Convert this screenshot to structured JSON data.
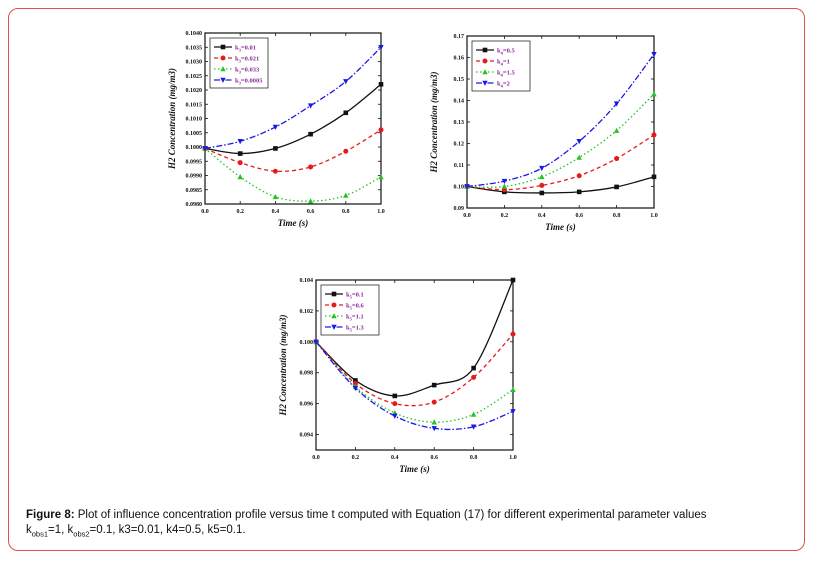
{
  "caption": {
    "label": "Figure 8:",
    "line1": " Plot of influence concentration profile versus time t computed with Equation (17) for different experimental parameter values",
    "line2_parts": [
      {
        "t": "k"
      },
      {
        "sub": "obs1"
      },
      {
        "t": "=1, k"
      },
      {
        "sub": "obs2"
      },
      {
        "t": "=0.1, k3=0.01, k4=0.5, k5=0.1."
      }
    ]
  },
  "chart_data": [
    {
      "type": "line",
      "ylabel": "H2 Concentration (mg/m3)",
      "xlabel": "Time (s)",
      "xlim": [
        0,
        1
      ],
      "ylim": [
        0.098,
        0.104
      ],
      "xticks": [
        "0.0",
        "0.2",
        "0.4",
        "0.6",
        "0.8",
        "1.0"
      ],
      "yticks": [
        "0.0980",
        "0.0985",
        "0.0990",
        "0.0995",
        "0.1000",
        "0.1005",
        "0.1010",
        "0.1015",
        "0.1020",
        "0.1025",
        "0.1030",
        "0.1035",
        "0.1040"
      ],
      "ytick_values": [
        0.098,
        0.0985,
        0.099,
        0.0995,
        0.1,
        0.1005,
        0.101,
        0.1015,
        0.102,
        0.1025,
        0.103,
        0.1035,
        0.104
      ],
      "legend_position": "top-left",
      "series": [
        {
          "name": "k3=0.01",
          "sym": "3",
          "val": "=0.01",
          "color": "#111111",
          "dash": "",
          "marker": "square",
          "x": [
            0,
            0.2,
            0.4,
            0.6,
            0.8,
            1.0
          ],
          "y": [
            0.09995,
            0.09977,
            0.09995,
            0.10045,
            0.1012,
            0.1022
          ]
        },
        {
          "name": "k3=0.021",
          "sym": "3",
          "val": "=0.021",
          "color": "#e8191c",
          "dash": "4,3",
          "marker": "circle",
          "x": [
            0,
            0.2,
            0.4,
            0.6,
            0.8,
            1.0
          ],
          "y": [
            0.09995,
            0.09945,
            0.09915,
            0.0993,
            0.09985,
            0.1006
          ]
        },
        {
          "name": "k3=0.033",
          "sym": "3",
          "val": "=0.033",
          "color": "#22c322",
          "dash": "1.5,2.5",
          "marker": "triangle-up",
          "x": [
            0,
            0.2,
            0.4,
            0.6,
            0.8,
            1.0
          ],
          "y": [
            0.09995,
            0.09895,
            0.09825,
            0.0981,
            0.0983,
            0.09895
          ]
        },
        {
          "name": "k3=0.0005",
          "sym": "3",
          "val": "=0.0005",
          "color": "#1a1ae6",
          "dash": "6,2,1.5,2",
          "marker": "triangle-down",
          "x": [
            0,
            0.2,
            0.4,
            0.6,
            0.8,
            1.0
          ],
          "y": [
            0.09995,
            0.1002,
            0.1007,
            0.10145,
            0.1023,
            0.1035
          ]
        }
      ]
    },
    {
      "type": "line",
      "ylabel": "H2 Concentration (mg/m3)",
      "xlabel": "Time (s)",
      "xlim": [
        0,
        1
      ],
      "ylim": [
        0.09,
        0.17
      ],
      "xticks": [
        "0.0",
        "0.2",
        "0.4",
        "0.6",
        "0.8",
        "1.0"
      ],
      "yticks": [
        "0.09",
        "0.10",
        "0.11",
        "0.12",
        "0.13",
        "0.14",
        "0.15",
        "0.16",
        "0.17"
      ],
      "ytick_values": [
        0.09,
        0.1,
        0.11,
        0.12,
        0.13,
        0.14,
        0.15,
        0.16,
        0.17
      ],
      "legend_position": "top-left",
      "series": [
        {
          "name": "k4=0.5",
          "sym": "4",
          "val": "=0.5",
          "color": "#111111",
          "dash": "",
          "marker": "square",
          "x": [
            0,
            0.2,
            0.4,
            0.6,
            0.8,
            1.0
          ],
          "y": [
            0.1,
            0.0975,
            0.097,
            0.0975,
            0.0998,
            0.1045
          ]
        },
        {
          "name": "k4=1",
          "sym": "4",
          "val": "=1",
          "color": "#e8191c",
          "dash": "4,3",
          "marker": "circle",
          "x": [
            0,
            0.2,
            0.4,
            0.6,
            0.8,
            1.0
          ],
          "y": [
            0.1,
            0.0985,
            0.1005,
            0.105,
            0.113,
            0.124
          ]
        },
        {
          "name": "k4=1.5",
          "sym": "4",
          "val": "=1.5",
          "color": "#22c322",
          "dash": "1.5,2.5",
          "marker": "triangle-up",
          "x": [
            0,
            0.2,
            0.4,
            0.6,
            0.8,
            1.0
          ],
          "y": [
            0.1,
            0.1,
            0.1045,
            0.1135,
            0.126,
            0.143
          ]
        },
        {
          "name": "k4=2",
          "sym": "4",
          "val": "=2",
          "color": "#1a1ae6",
          "dash": "6,2,1.5,2",
          "marker": "triangle-down",
          "x": [
            0,
            0.2,
            0.4,
            0.6,
            0.8,
            1.0
          ],
          "y": [
            0.1,
            0.1025,
            0.1085,
            0.121,
            0.1385,
            0.1615
          ]
        }
      ]
    },
    {
      "type": "line",
      "ylabel": "H2 Concentration (mg/m3)",
      "xlabel": "Time (s)",
      "xlim": [
        0,
        1
      ],
      "ylim": [
        0.093,
        0.104
      ],
      "xticks": [
        "0.0",
        "0.2",
        "0.4",
        "0.6",
        "0.8",
        "1.0"
      ],
      "yticks": [
        "0.094",
        "0.096",
        "0.098",
        "0.100",
        "0.102",
        "0.104"
      ],
      "ytick_values": [
        0.094,
        0.096,
        0.098,
        0.1,
        0.102,
        0.104
      ],
      "legend_position": "top-left",
      "series": [
        {
          "name": "k5=0.1",
          "sym": "5",
          "val": "=0.1",
          "color": "#111111",
          "dash": "",
          "marker": "square",
          "x": [
            0,
            0.2,
            0.4,
            0.6,
            0.8,
            1.0
          ],
          "y": [
            0.1,
            0.0975,
            0.0965,
            0.0972,
            0.0983,
            0.104
          ]
        },
        {
          "name": "k5=0.6",
          "sym": "5",
          "val": "=0.6",
          "color": "#e8191c",
          "dash": "4,3",
          "marker": "circle",
          "x": [
            0,
            0.2,
            0.4,
            0.6,
            0.8,
            1.0
          ],
          "y": [
            0.1,
            0.0973,
            0.096,
            0.0961,
            0.0977,
            0.1005
          ]
        },
        {
          "name": "k5=1.1",
          "sym": "5",
          "val": "=1.1",
          "color": "#22c322",
          "dash": "1.5,2.5",
          "marker": "triangle-up",
          "x": [
            0,
            0.2,
            0.4,
            0.6,
            0.8,
            1.0
          ],
          "y": [
            0.1,
            0.0971,
            0.0954,
            0.0948,
            0.0953,
            0.0969
          ]
        },
        {
          "name": "k5=1.3",
          "sym": "5",
          "val": "=1.3",
          "color": "#1a1ae6",
          "dash": "6,2,1.5,2",
          "marker": "triangle-down",
          "x": [
            0,
            0.2,
            0.4,
            0.6,
            0.8,
            1.0
          ],
          "y": [
            0.1,
            0.097,
            0.0952,
            0.0944,
            0.0945,
            0.0955
          ]
        }
      ]
    }
  ]
}
